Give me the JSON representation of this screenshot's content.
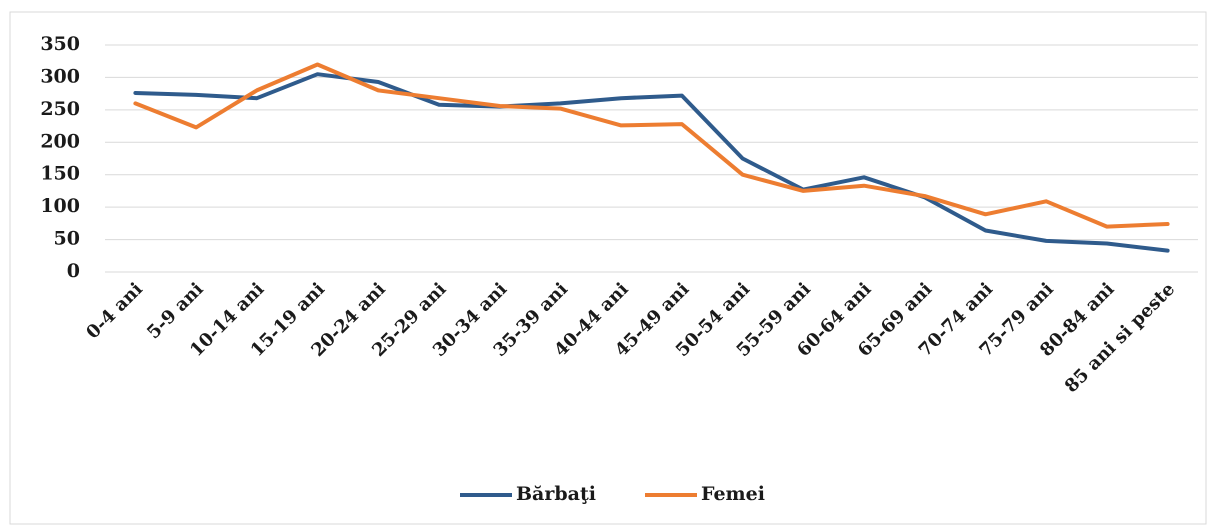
{
  "chart_data": {
    "type": "line",
    "categories": [
      "0-4 ani",
      "5-9 ani",
      "10-14 ani",
      "15-19 ani",
      "20-24 ani",
      "25-29 ani",
      "30-34 ani",
      "35-39 ani",
      "40-44 ani",
      "45-49 ani",
      "50-54 ani",
      "55-59 ani",
      "60-64 ani",
      "65-69 ani",
      "70-74 ani",
      "75-79 ani",
      "80-84 ani",
      "85 ani si peste"
    ],
    "series": [
      {
        "name": "Bărbaţi",
        "color": "#2f5b8c",
        "values": [
          276,
          273,
          268,
          305,
          293,
          258,
          255,
          260,
          268,
          272,
          175,
          127,
          146,
          115,
          64,
          48,
          44,
          33
        ]
      },
      {
        "name": "Femei",
        "color": "#ed7d31",
        "values": [
          260,
          223,
          280,
          320,
          280,
          268,
          256,
          252,
          226,
          228,
          150,
          125,
          133,
          117,
          89,
          109,
          70,
          74
        ]
      }
    ],
    "ylim": [
      0,
      350
    ],
    "yticks": [
      0,
      50,
      100,
      150,
      200,
      250,
      300,
      350
    ],
    "grid": true,
    "legend": "bottom"
  }
}
